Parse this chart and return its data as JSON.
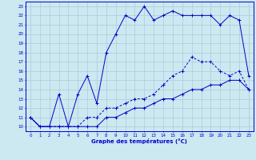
{
  "xlabel": "Graphe des températures (°C)",
  "background_color": "#cce8f0",
  "grid_color": "#aaccd8",
  "line_color": "#0000cc",
  "xlim": [
    -0.5,
    23.5
  ],
  "ylim": [
    9.5,
    23.5
  ],
  "x_ticks": [
    0,
    1,
    2,
    3,
    4,
    5,
    6,
    7,
    8,
    9,
    10,
    11,
    12,
    13,
    14,
    15,
    16,
    17,
    18,
    19,
    20,
    21,
    22,
    23
  ],
  "y_ticks": [
    10,
    11,
    12,
    13,
    14,
    15,
    16,
    17,
    18,
    19,
    20,
    21,
    22,
    23
  ],
  "series1_x": [
    0,
    1,
    2,
    3,
    4,
    5,
    6,
    7,
    8,
    9,
    10,
    11,
    12,
    13,
    14,
    15,
    16,
    17,
    18,
    19,
    20,
    21,
    22,
    23
  ],
  "series1_y": [
    11,
    10,
    10,
    10,
    10,
    10,
    10,
    10,
    11,
    11,
    11.5,
    12,
    12,
    12.5,
    13,
    13,
    13.5,
    14,
    14,
    14.5,
    14.5,
    15,
    15,
    14
  ],
  "series2_x": [
    0,
    1,
    2,
    3,
    4,
    5,
    6,
    7,
    8,
    9,
    10,
    11,
    12,
    13,
    14,
    15,
    16,
    17,
    18,
    19,
    20,
    21,
    22,
    23
  ],
  "series2_y": [
    11,
    10,
    10,
    10,
    10,
    10,
    11,
    11,
    12,
    12,
    12.5,
    13,
    13,
    13.5,
    14.5,
    15.5,
    16,
    17.5,
    17,
    17,
    16,
    15.5,
    16,
    14
  ],
  "series3_x": [
    0,
    1,
    2,
    3,
    4,
    5,
    6,
    7,
    8,
    9,
    10,
    11,
    12,
    13,
    14,
    15,
    16,
    17,
    18,
    19,
    20,
    21,
    22,
    23
  ],
  "series3_y": [
    11,
    10,
    10,
    13.5,
    10,
    13.5,
    15.5,
    12.5,
    18,
    20,
    22,
    21.5,
    23,
    21.5,
    22,
    22.5,
    22,
    22,
    22,
    22,
    21,
    22,
    21.5,
    15.5
  ]
}
